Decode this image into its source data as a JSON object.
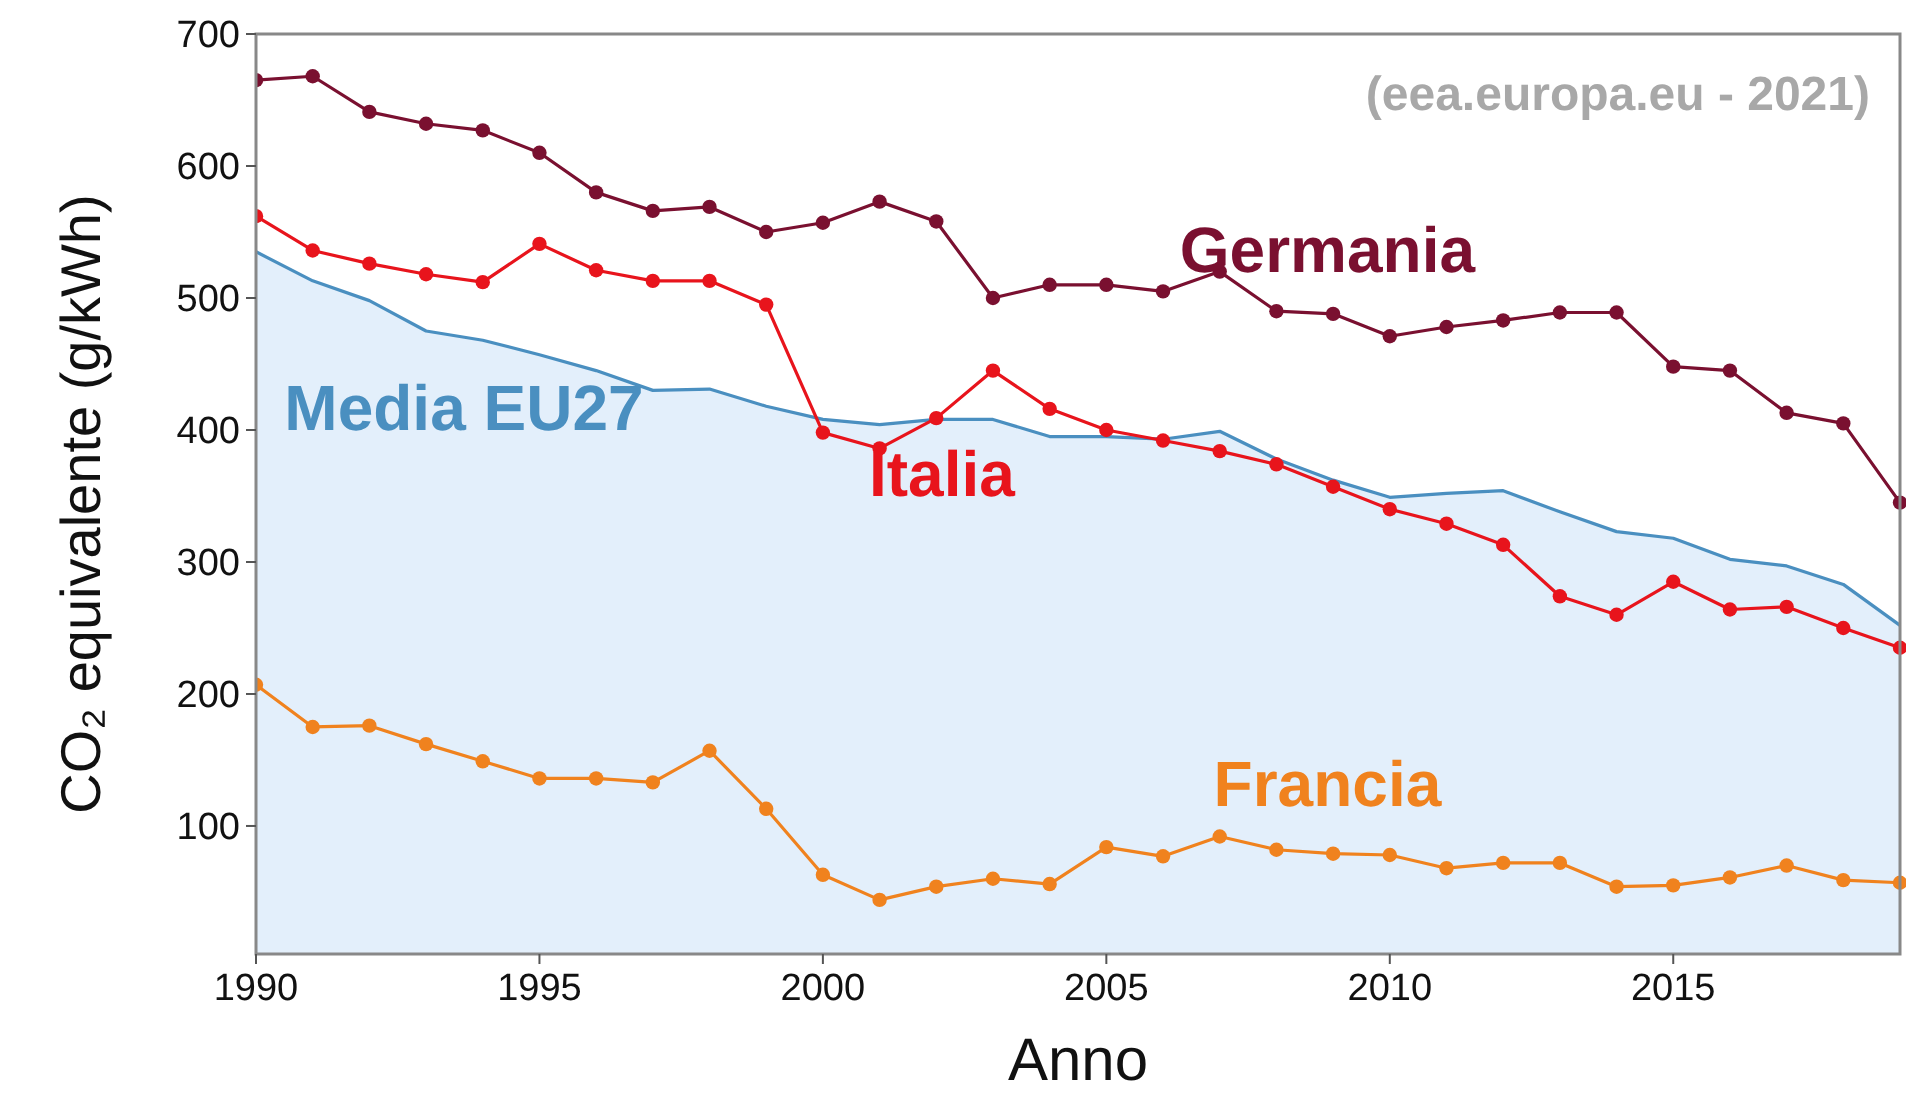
{
  "chart_data": {
    "type": "line",
    "xlabel": "Anno",
    "ylabel": "CO₂ equivalente (g/kWh)",
    "x": [
      1990,
      1991,
      1992,
      1993,
      1994,
      1995,
      1996,
      1997,
      1998,
      1999,
      2000,
      2001,
      2002,
      2003,
      2004,
      2005,
      2006,
      2007,
      2008,
      2009,
      2010,
      2011,
      2012,
      2013,
      2014,
      2015,
      2016,
      2017,
      2018,
      2019
    ],
    "xlim": [
      1990,
      2019
    ],
    "xticks": [
      1990,
      1995,
      2000,
      2005,
      2010,
      2015
    ],
    "ylim": [
      3,
      700
    ],
    "yticks": [
      100,
      200,
      300,
      400,
      500,
      600,
      700
    ],
    "grid": false,
    "legend": false,
    "annotations": [
      "(eea.europa.eu - 2021)"
    ],
    "series": [
      {
        "name": "Media EU27",
        "type": "area",
        "color": "#4a8fc0",
        "marker": "none",
        "values": [
          535,
          513,
          498,
          475,
          468,
          457,
          445,
          430,
          431,
          418,
          408,
          404,
          408,
          408,
          395,
          395,
          393,
          399,
          378,
          362,
          349,
          352,
          354,
          338,
          323,
          318,
          302,
          297,
          283,
          252
        ]
      },
      {
        "name": "Germania",
        "color": "#7a1030",
        "marker": "circle",
        "values": [
          665,
          668,
          641,
          632,
          627,
          610,
          580,
          566,
          569,
          550,
          557,
          573,
          558,
          500,
          510,
          510,
          505,
          520,
          490,
          488,
          471,
          478,
          483,
          489,
          489,
          448,
          445,
          413,
          405,
          345
        ]
      },
      {
        "name": "Italia",
        "color": "#e8141c",
        "marker": "circle",
        "values": [
          562,
          536,
          526,
          518,
          512,
          541,
          521,
          513,
          513,
          495,
          398,
          386,
          409,
          445,
          416,
          400,
          392,
          384,
          374,
          357,
          340,
          329,
          313,
          274,
          260,
          285,
          264,
          266,
          250,
          235
        ]
      },
      {
        "name": "Francia",
        "color": "#f0821e",
        "marker": "circle",
        "values": [
          207,
          175,
          176,
          162,
          149,
          136,
          136,
          133,
          157,
          113,
          63,
          44,
          54,
          60,
          56,
          84,
          77,
          92,
          82,
          79,
          78,
          68,
          72,
          72,
          54,
          55,
          61,
          70,
          59,
          57
        ]
      }
    ]
  }
}
